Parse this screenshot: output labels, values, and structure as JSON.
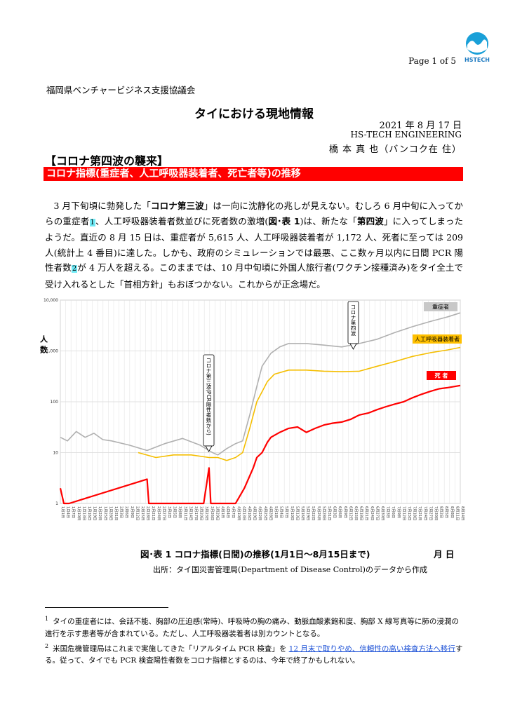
{
  "header": {
    "page_label": "Page  1  of 5",
    "logo_text": "HSTECH",
    "organization": "福岡県ベンチャービジネス支援協議会"
  },
  "document": {
    "title": "タイにおける現地情報",
    "date": "2021 年 8 月 17 日",
    "company": "HS-TECH ENGINEERING",
    "author": "橋 本 真 也（バンコク在 住）",
    "section_title": "【コロナ第四波の襲来】",
    "subsection_title": "コロナ指標(重症者、人工呼吸器装着者、死亡者等)の推移",
    "paragraph": {
      "p1": "3 月下旬頃に勃発した「",
      "p1_bold": "コロナ第三波",
      "p2": "」は一向に沈静化の兆しが見えない。むしろ 6 月中旬に入ってからの重症者",
      "fn1": "1",
      "p3": "、人工呼吸器装着者数並びに死者数の激増(",
      "p3_bold": "図･表 1",
      "p4": ")は、新たな「",
      "p4_bold": "第四波",
      "p5": "」に入ってしまったようだ。直近の 8 月 15 日は、重症者が 5,615 人、人工呼吸器装着者が 1,172 人、死者に至っては 209 人(統計上 4 番目)に達した。しかも、政府のシミュレーションでは最悪、ここ数ヶ月以内に日間 PCR 陽性者数",
      "fn2": "2",
      "p6": "が 4 万人を超える。このままでは、10 月中旬頃に外国人旅行者(ワクチン接種済み)をタイ全土で受け入れるとした「首相方針」もおぼつかない。これからが正念場だ。"
    },
    "figure_caption": "図･表 1 コロナ指標(日間)の推移(1月1日～8月15日まで)",
    "figure_month_day": "月 日",
    "source": "出所：タイ国災害管理局(Department of Disease Control)のデータから作成"
  },
  "footnotes": [
    {
      "num": "1",
      "text": "タイの重症者には、会話不能、胸部の圧迫感(常時)、呼吸時の胸の痛み、動脈血酸素飽和度、胸部 X 線写真等に肺の浸潤の進行を示す患者等が含まれている。ただし、人工呼吸器装着者は別カウントとなる。"
    },
    {
      "num": "2",
      "text_before": "米国危機管理局はこれまで実施してきた「リアルタイム PCR 検査」を ",
      "link": "12 月末で取りやめ、信頼性の高い検査方法へ移行",
      "text_after": "する。従って、タイでも PCR 検査陽性者数をコロナ指標とするのは、今年で終了かもしれない。"
    }
  ],
  "chart_data": {
    "type": "line",
    "ylabel": "人 数",
    "yscale": "log",
    "ylim": [
      1,
      10000
    ],
    "y_ticks": [
      "10,000",
      "1,000",
      "100",
      "10",
      "1"
    ],
    "x_ticks": [
      "1月1日",
      "1月4日",
      "1月7日",
      "1月10日",
      "1月13日",
      "1月16日",
      "1月19日",
      "1月22日",
      "1月25日",
      "1月28日",
      "1月31日",
      "2月3日",
      "2月6日",
      "2月9日",
      "2月12日",
      "2月15日",
      "2月18日",
      "2月21日",
      "2月24日",
      "2月27日",
      "3月2日",
      "3月5日",
      "3月8日",
      "3月11日",
      "3月14日",
      "3月17日",
      "3月20日",
      "3月23日",
      "3月26日",
      "3月29日",
      "4月1日",
      "4月4日",
      "4月7日",
      "4月10日",
      "4月13日",
      "4月16日",
      "4月19日",
      "4月22日",
      "4月25日",
      "4月28日",
      "5月1日",
      "5月4日",
      "5月7日",
      "5月10日",
      "5月13日",
      "5月16日",
      "5月19日",
      "5月22日",
      "5月25日",
      "5月28日",
      "5月31日",
      "6月3日",
      "6月6日",
      "6月9日",
      "6月12日",
      "6月15日",
      "6月18日",
      "6月21日",
      "6月24日",
      "6月27日",
      "6月30日",
      "7月3日",
      "7月6日",
      "7月9日",
      "7月12日",
      "7月15日",
      "7月18日",
      "7月21日",
      "7月24日",
      "7月27日",
      "7月30日",
      "8月2日",
      "8月5日",
      "8月8日",
      "8月11日",
      "8月14日"
    ],
    "grid": true,
    "series": [
      {
        "name": "重症者",
        "color": "#b0b0b0",
        "label_bg": "#c8c8c8",
        "points": [
          [
            1,
            20
          ],
          [
            5,
            17
          ],
          [
            10,
            26
          ],
          [
            15,
            20
          ],
          [
            20,
            24
          ],
          [
            25,
            18
          ],
          [
            30,
            17
          ],
          [
            40,
            14
          ],
          [
            50,
            11
          ],
          [
            60,
            15
          ],
          [
            70,
            19
          ],
          [
            80,
            14
          ],
          [
            87,
            10
          ],
          [
            90,
            9
          ],
          [
            95,
            12
          ],
          [
            100,
            15
          ],
          [
            104,
            17
          ],
          [
            108,
            55
          ],
          [
            112,
            200
          ],
          [
            115,
            500
          ],
          [
            120,
            900
          ],
          [
            125,
            1200
          ],
          [
            130,
            1400
          ],
          [
            140,
            1400
          ],
          [
            150,
            1300
          ],
          [
            160,
            1200
          ],
          [
            170,
            1400
          ],
          [
            180,
            1700
          ],
          [
            190,
            2300
          ],
          [
            200,
            3000
          ],
          [
            210,
            3800
          ],
          [
            220,
            4700
          ],
          [
            227,
            5615
          ]
        ]
      },
      {
        "name": "人工呼吸器装着者",
        "color": "#f5be00",
        "label_bg": "#ffc000",
        "points": [
          [
            45,
            10
          ],
          [
            55,
            8
          ],
          [
            65,
            9
          ],
          [
            75,
            9
          ],
          [
            85,
            8
          ],
          [
            90,
            8
          ],
          [
            95,
            7
          ],
          [
            100,
            8
          ],
          [
            104,
            10
          ],
          [
            108,
            30
          ],
          [
            112,
            100
          ],
          [
            118,
            250
          ],
          [
            122,
            350
          ],
          [
            130,
            420
          ],
          [
            140,
            420
          ],
          [
            150,
            400
          ],
          [
            160,
            390
          ],
          [
            170,
            400
          ],
          [
            180,
            500
          ],
          [
            190,
            620
          ],
          [
            200,
            780
          ],
          [
            210,
            920
          ],
          [
            220,
            1050
          ],
          [
            227,
            1172
          ]
        ]
      },
      {
        "name": "死 者",
        "color": "#ff0000",
        "label_bg": "#ff0000",
        "points": [
          [
            1,
            2
          ],
          [
            3,
            1
          ],
          [
            6,
            1
          ],
          [
            50,
            3
          ],
          [
            51,
            1
          ],
          [
            60,
            1
          ],
          [
            73,
            1
          ],
          [
            78,
            1
          ],
          [
            82,
            1
          ],
          [
            85,
            5
          ],
          [
            86,
            1
          ],
          [
            88,
            1
          ],
          [
            90,
            1
          ],
          [
            95,
            1
          ],
          [
            100,
            1
          ],
          [
            105,
            2
          ],
          [
            110,
            5
          ],
          [
            112,
            8
          ],
          [
            115,
            10
          ],
          [
            118,
            16
          ],
          [
            120,
            20
          ],
          [
            125,
            25
          ],
          [
            130,
            30
          ],
          [
            135,
            32
          ],
          [
            140,
            25
          ],
          [
            145,
            30
          ],
          [
            150,
            35
          ],
          [
            155,
            38
          ],
          [
            160,
            40
          ],
          [
            165,
            45
          ],
          [
            170,
            55
          ],
          [
            175,
            60
          ],
          [
            180,
            70
          ],
          [
            185,
            80
          ],
          [
            190,
            90
          ],
          [
            195,
            100
          ],
          [
            200,
            120
          ],
          [
            205,
            140
          ],
          [
            210,
            160
          ],
          [
            215,
            180
          ],
          [
            220,
            190
          ],
          [
            227,
            209
          ]
        ]
      }
    ],
    "annotations": [
      {
        "text": "コロナ第三波(PCR陽性者数から)"
      },
      {
        "text": "コロナ第四波"
      }
    ]
  }
}
